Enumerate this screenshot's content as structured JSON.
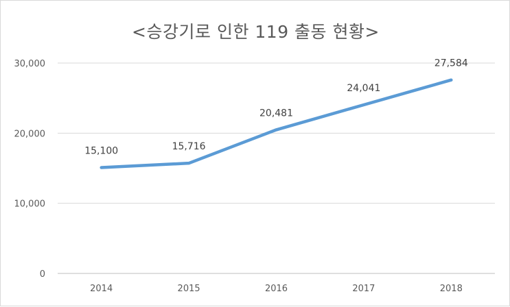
{
  "chart_data": {
    "type": "line",
    "title": "<승강기로 인한 119 출동 현황>",
    "categories": [
      "2014",
      "2015",
      "2016",
      "2017",
      "2018"
    ],
    "series": [
      {
        "values": [
          15100,
          15716,
          20481,
          24041,
          27584
        ]
      }
    ],
    "data_labels": [
      "15,100",
      "15,716",
      "20,481",
      "24,041",
      "27,584"
    ],
    "y_ticks": [
      {
        "value": 0,
        "label": "0"
      },
      {
        "value": 10000,
        "label": "10,000"
      },
      {
        "value": 20000,
        "label": "20,000"
      },
      {
        "value": 30000,
        "label": "30,000"
      }
    ],
    "ylim": [
      0,
      30000
    ],
    "xlabel": "",
    "ylabel": "",
    "grid": true,
    "legend": "none",
    "colors": {
      "line": "#5b9bd5",
      "grid": "#d9d9d9",
      "axis": "#bfbfbf",
      "text": "#595959"
    }
  }
}
